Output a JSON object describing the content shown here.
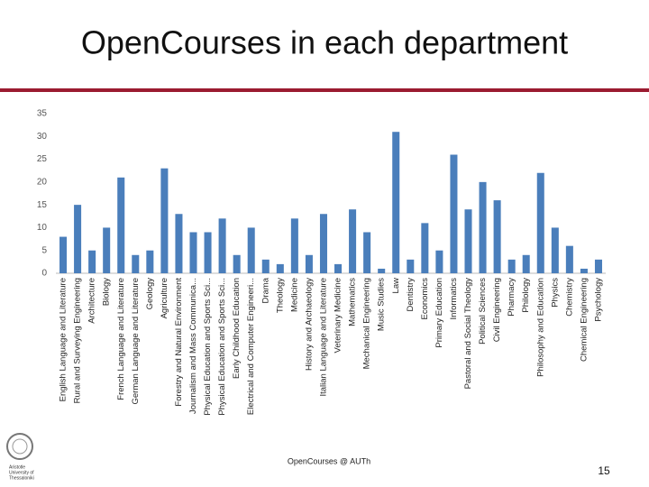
{
  "chart_data": {
    "type": "bar",
    "title": "OpenCourses in each department",
    "categories": [
      "English Language and Literature",
      "Rural and Surveying Engineering",
      "Architecture",
      "Biology",
      "French Language and Literature",
      "German Language and Literature",
      "Geology",
      "Agriculture",
      "Forestry and Natural Environment",
      "Journalism and Mass Communica...",
      "Physical Education and Sports Sci...",
      "Physical Education and Sports Sci...",
      "Early Childhood Education",
      "Electrical and Computer Engineeri...",
      "Drama",
      "Theology",
      "Medicine",
      "History and Archaeology",
      "Italian Language and Literature",
      "Veterinary Medicine",
      "Mathematics",
      "Mechanical Engineering",
      "Music Studies",
      "Law",
      "Dentistry",
      "Economics",
      "Primary Education",
      "Informatics",
      "Pastoral and Social Theology",
      "Political Sciences",
      "Civil Engineering",
      "Pharmacy",
      "Philology",
      "Philosophy and Education",
      "Physics",
      "Chemistry",
      "Chemical Engineering",
      "Psychology"
    ],
    "values": [
      8,
      15,
      5,
      10,
      21,
      4,
      5,
      23,
      13,
      9,
      9,
      12,
      4,
      10,
      3,
      2,
      12,
      4,
      13,
      2,
      14,
      9,
      1,
      31,
      3,
      11,
      5,
      26,
      14,
      20,
      16,
      3,
      4,
      22,
      10,
      6,
      1,
      3
    ],
    "color": "#4a7ebb",
    "ylim": [
      0,
      35
    ],
    "yticks": [
      0,
      5,
      10,
      15,
      20,
      25,
      30,
      35
    ],
    "grid": false
  },
  "footer": "OpenCourses @ AUTh",
  "page_number": "15",
  "logo_text": [
    "Aristotle",
    "University of",
    "Thessaloniki"
  ]
}
